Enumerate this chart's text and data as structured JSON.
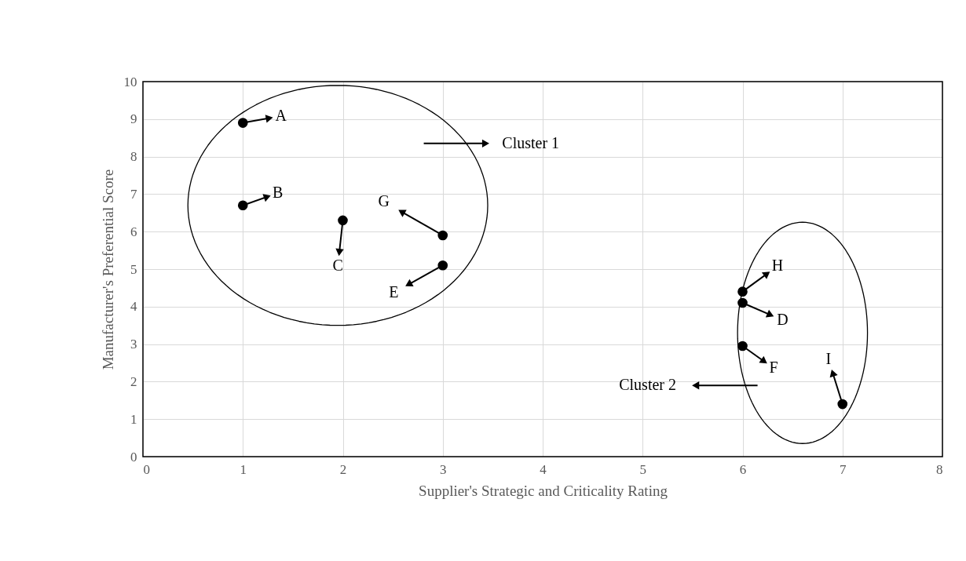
{
  "chart_data": {
    "type": "scatter",
    "xlabel": "Supplier's Strategic and Criticality Rating",
    "ylabel": "Manufacturer's Preferential Score",
    "x": [
      1,
      1,
      2,
      3,
      3,
      6,
      6,
      6,
      7
    ],
    "series": [
      {
        "color": "#000000",
        "values": [
          8.9,
          6.7,
          6.3,
          5.9,
          5.1,
          4.4,
          4.1,
          2.95,
          1.4
        ]
      }
    ],
    "xlim": [
      0,
      8
    ],
    "xticks": [
      0,
      1,
      2,
      3,
      4,
      5,
      6,
      7,
      8
    ],
    "ylim": [
      0,
      10
    ],
    "yticks": [
      0,
      1,
      2,
      3,
      4,
      5,
      6,
      7,
      8,
      9,
      10
    ],
    "grid": true,
    "marker": "circle",
    "annotations": [
      {
        "text": "A",
        "x": 1,
        "y": 8.9
      },
      {
        "text": "B",
        "x": 1,
        "y": 6.7
      },
      {
        "text": "C",
        "x": 2,
        "y": 6.3
      },
      {
        "text": "G",
        "x": 3,
        "y": 5.9
      },
      {
        "text": "E",
        "x": 3,
        "y": 5.1
      },
      {
        "text": "H",
        "x": 6,
        "y": 4.4
      },
      {
        "text": "D",
        "x": 6,
        "y": 4.1
      },
      {
        "text": "F",
        "x": 6,
        "y": 2.95
      },
      {
        "text": "I",
        "x": 7,
        "y": 1.4
      },
      "Cluster 1",
      "Cluster 2"
    ]
  }
}
